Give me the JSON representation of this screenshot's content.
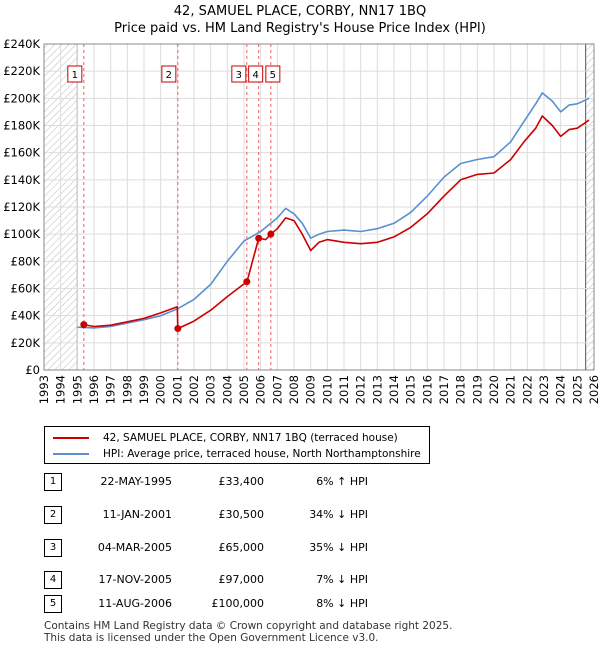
{
  "title_line1": "42, SAMUEL PLACE, CORBY, NN17 1BQ",
  "title_line2": "Price paid vs. HM Land Registry's House Price Index (HPI)",
  "chart_data": {
    "type": "line",
    "title": "42, SAMUEL PLACE, CORBY, NN17 1BQ — Price paid vs. HM Land Registry's House Price Index (HPI)",
    "xlabel": "",
    "ylabel": "",
    "xlim": [
      1993,
      2026
    ],
    "ylim": [
      0,
      240000
    ],
    "x_ticks": [
      1993,
      1994,
      1995,
      1996,
      1997,
      1998,
      1999,
      2000,
      2001,
      2002,
      2003,
      2004,
      2005,
      2006,
      2007,
      2008,
      2009,
      2010,
      2011,
      2012,
      2013,
      2014,
      2015,
      2016,
      2017,
      2018,
      2019,
      2020,
      2021,
      2022,
      2023,
      2024,
      2025,
      2026
    ],
    "y_ticks": [
      {
        "value": 0,
        "label": "£0"
      },
      {
        "value": 20000,
        "label": "£20K"
      },
      {
        "value": 40000,
        "label": "£40K"
      },
      {
        "value": 60000,
        "label": "£60K"
      },
      {
        "value": 80000,
        "label": "£80K"
      },
      {
        "value": 100000,
        "label": "£100K"
      },
      {
        "value": 120000,
        "label": "£120K"
      },
      {
        "value": 140000,
        "label": "£140K"
      },
      {
        "value": 160000,
        "label": "£160K"
      },
      {
        "value": 180000,
        "label": "£180K"
      },
      {
        "value": 200000,
        "label": "£200K"
      },
      {
        "value": 220000,
        "label": "£220K"
      },
      {
        "value": 240000,
        "label": "£240K"
      }
    ],
    "grid": true,
    "hatched_ranges": [
      [
        1993,
        1995.0
      ],
      [
        2025.5,
        2026
      ]
    ],
    "series": [
      {
        "name": "42, SAMUEL PLACE, CORBY, NN17 1BQ (terraced house)",
        "color": "#cc0000",
        "points": [
          [
            1995.39,
            33400
          ],
          [
            1996.0,
            32000
          ],
          [
            1997.0,
            33000
          ],
          [
            1998.0,
            35500
          ],
          [
            1999.0,
            38000
          ],
          [
            2000.0,
            42000
          ],
          [
            2001.0,
            46500
          ],
          [
            2001.03,
            30500
          ],
          [
            2002.0,
            36000
          ],
          [
            2003.0,
            44000
          ],
          [
            2004.0,
            54000
          ],
          [
            2005.17,
            65000
          ],
          [
            2005.18,
            65000
          ],
          [
            2005.88,
            97000
          ],
          [
            2006.3,
            96000
          ],
          [
            2006.61,
            100000
          ],
          [
            2007.0,
            104000
          ],
          [
            2007.5,
            112000
          ],
          [
            2008.0,
            110000
          ],
          [
            2008.5,
            100000
          ],
          [
            2009.0,
            88000
          ],
          [
            2009.5,
            94000
          ],
          [
            2010.0,
            96000
          ],
          [
            2011.0,
            94000
          ],
          [
            2012.0,
            93000
          ],
          [
            2013.0,
            94000
          ],
          [
            2014.0,
            98000
          ],
          [
            2015.0,
            105000
          ],
          [
            2016.0,
            115000
          ],
          [
            2017.0,
            128000
          ],
          [
            2018.0,
            140000
          ],
          [
            2019.0,
            144000
          ],
          [
            2020.0,
            145000
          ],
          [
            2021.0,
            155000
          ],
          [
            2021.8,
            168000
          ],
          [
            2022.5,
            178000
          ],
          [
            2022.9,
            187000
          ],
          [
            2023.5,
            180000
          ],
          [
            2024.0,
            172000
          ],
          [
            2024.5,
            177000
          ],
          [
            2025.0,
            178000
          ],
          [
            2025.7,
            184000
          ]
        ]
      },
      {
        "name": "HPI: Average price, terraced house, North Northamptonshire",
        "color": "#5b8fd0",
        "points": [
          [
            1995.0,
            31500
          ],
          [
            1996.0,
            31000
          ],
          [
            1997.0,
            32000
          ],
          [
            1998.0,
            34500
          ],
          [
            1999.0,
            37000
          ],
          [
            2000.0,
            40000
          ],
          [
            2001.0,
            45000
          ],
          [
            2002.0,
            52000
          ],
          [
            2003.0,
            63000
          ],
          [
            2004.0,
            80000
          ],
          [
            2005.0,
            95000
          ],
          [
            2006.0,
            102000
          ],
          [
            2007.0,
            112000
          ],
          [
            2007.5,
            119000
          ],
          [
            2008.0,
            115000
          ],
          [
            2008.5,
            108000
          ],
          [
            2009.0,
            97000
          ],
          [
            2009.5,
            100000
          ],
          [
            2010.0,
            102000
          ],
          [
            2011.0,
            103000
          ],
          [
            2012.0,
            102000
          ],
          [
            2013.0,
            104000
          ],
          [
            2014.0,
            108000
          ],
          [
            2015.0,
            116000
          ],
          [
            2016.0,
            128000
          ],
          [
            2017.0,
            142000
          ],
          [
            2018.0,
            152000
          ],
          [
            2019.0,
            155000
          ],
          [
            2020.0,
            157000
          ],
          [
            2021.0,
            168000
          ],
          [
            2021.8,
            183000
          ],
          [
            2022.5,
            196000
          ],
          [
            2022.9,
            204000
          ],
          [
            2023.5,
            198000
          ],
          [
            2024.0,
            190000
          ],
          [
            2024.5,
            195000
          ],
          [
            2025.0,
            196000
          ],
          [
            2025.7,
            200000
          ]
        ]
      }
    ],
    "sales": [
      {
        "label": "1",
        "x": 1995.39,
        "value": 33400
      },
      {
        "label": "2",
        "x": 2001.03,
        "value": 30500
      },
      {
        "label": "3",
        "x": 2005.17,
        "value": 65000
      },
      {
        "label": "4",
        "x": 2005.88,
        "value": 97000
      },
      {
        "label": "5",
        "x": 2006.61,
        "value": 100000
      }
    ],
    "legend": [
      {
        "label": "42, SAMUEL PLACE, CORBY, NN17 1BQ (terraced house)",
        "color": "#cc0000"
      },
      {
        "label": "HPI: Average price, terraced house, North Northamptonshire",
        "color": "#5b8fd0"
      }
    ]
  },
  "transactions": [
    {
      "num": "1",
      "date": "22-MAY-1995",
      "price": "£33,400",
      "hpi": "6% ↑ HPI"
    },
    {
      "num": "2",
      "date": "11-JAN-2001",
      "price": "£30,500",
      "hpi": "34% ↓ HPI"
    },
    {
      "num": "3",
      "date": "04-MAR-2005",
      "price": "£65,000",
      "hpi": "35% ↓ HPI"
    },
    {
      "num": "4",
      "date": "17-NOV-2005",
      "price": "£97,000",
      "hpi": "7% ↓ HPI"
    },
    {
      "num": "5",
      "date": "11-AUG-2006",
      "price": "£100,000",
      "hpi": "8% ↓ HPI"
    }
  ],
  "footer": {
    "line1": "Contains HM Land Registry data © Crown copyright and database right 2025.",
    "line2": "This data is licensed under the Open Government Licence v3.0."
  }
}
